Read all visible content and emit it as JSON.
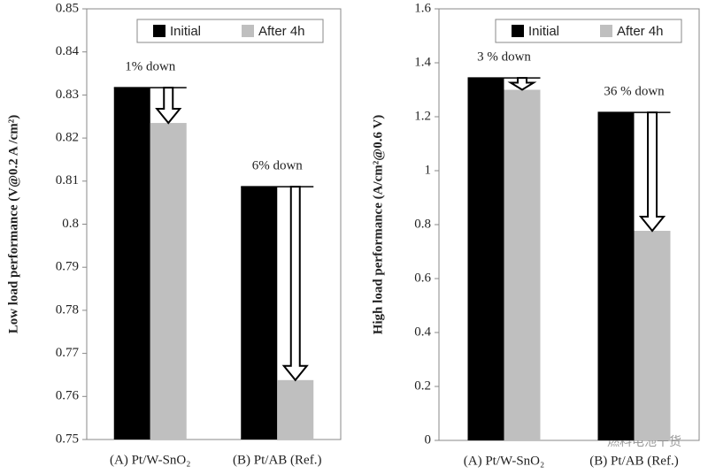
{
  "chart_data": [
    {
      "type": "bar",
      "ylabel": "Low load performance (V@0.2 A /cm²)",
      "categories": [
        "(A) Pt/W-SnO₂",
        "(B) Pt/AB (Ref.)"
      ],
      "series": [
        {
          "name": "Initial",
          "color": "#000000",
          "values": [
            0.8317,
            0.8087
          ]
        },
        {
          "name": "After 4h",
          "color": "#bfbfbf",
          "values": [
            0.8235,
            0.7638
          ]
        }
      ],
      "annotations": [
        "1% down",
        "6% down"
      ],
      "ylim": [
        0.75,
        0.85
      ],
      "yticks": [
        0.75,
        0.76,
        0.77,
        0.78,
        0.79,
        0.8,
        0.81,
        0.82,
        0.83,
        0.84,
        0.85
      ],
      "legend": "top-right"
    },
    {
      "type": "bar",
      "ylabel": "High load performance (A/cm²@0.6 V)",
      "categories": [
        "(A) Pt/W-SnO₂",
        "(B) Pt/AB (Ref.)"
      ],
      "series": [
        {
          "name": "Initial",
          "color": "#000000",
          "values": [
            1.344,
            1.216
          ]
        },
        {
          "name": "After 4h",
          "color": "#bfbfbf",
          "values": [
            1.3,
            0.777
          ]
        }
      ],
      "annotations": [
        "3 % down",
        "36 % down"
      ],
      "ylim": [
        0,
        1.6
      ],
      "yticks": [
        0,
        0.2,
        0.4,
        0.6,
        0.8,
        1,
        1.2,
        1.4,
        1.6
      ],
      "legend": "top-right"
    }
  ],
  "watermark": "燃料电池干货"
}
